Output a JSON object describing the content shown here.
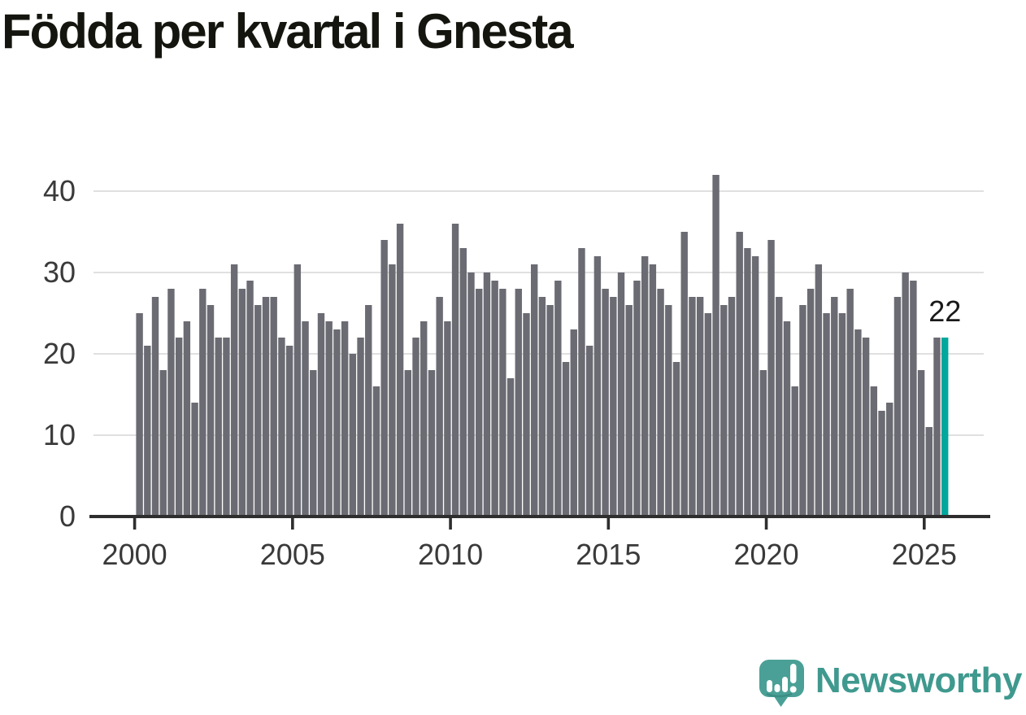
{
  "title": "Födda per kvartal i Gnesta",
  "chart_data": {
    "type": "bar",
    "title": "Födda per kvartal i Gnesta",
    "x_unit": "quarter",
    "start_year": 2000,
    "start_quarter": 1,
    "end_year": 2025,
    "end_quarter": 3,
    "values": [
      25,
      21,
      27,
      18,
      28,
      22,
      24,
      14,
      28,
      26,
      22,
      22,
      31,
      28,
      29,
      26,
      27,
      27,
      22,
      21,
      31,
      24,
      18,
      25,
      24,
      23,
      24,
      20,
      22,
      26,
      16,
      34,
      31,
      36,
      18,
      22,
      24,
      18,
      27,
      24,
      36,
      33,
      30,
      28,
      30,
      29,
      28,
      17,
      28,
      25,
      31,
      27,
      26,
      29,
      19,
      23,
      33,
      21,
      32,
      28,
      27,
      30,
      26,
      29,
      32,
      31,
      28,
      26,
      19,
      35,
      27,
      27,
      25,
      42,
      26,
      27,
      35,
      33,
      32,
      18,
      34,
      27,
      24,
      16,
      26,
      28,
      31,
      25,
      27,
      25,
      28,
      23,
      22,
      16,
      13,
      14,
      27,
      30,
      29,
      18,
      11,
      22,
      22
    ],
    "highlight_index": 102,
    "highlight_label": "22",
    "xticks": [
      {
        "label": "2000",
        "index": 0
      },
      {
        "label": "2005",
        "index": 20
      },
      {
        "label": "2010",
        "index": 40
      },
      {
        "label": "2015",
        "index": 60
      },
      {
        "label": "2020",
        "index": 80
      },
      {
        "label": "2025",
        "index": 100
      }
    ],
    "yticks": [
      {
        "label": "0",
        "value": 0
      },
      {
        "label": "10",
        "value": 10
      },
      {
        "label": "20",
        "value": 20
      },
      {
        "label": "30",
        "value": 30
      },
      {
        "label": "40",
        "value": 40
      }
    ],
    "ylim": [
      0,
      44
    ],
    "grid": "horizontal",
    "legend": null,
    "colors": {
      "bar": "#6b6b73",
      "highlight": "#00a79d",
      "grid": "#e0e0e0",
      "axis": "#2e2e2e",
      "tick_text": "#3a3a3a",
      "annotation": "#1a1a1a"
    }
  },
  "brand": {
    "name": "Newsworthy",
    "color": "#3f998e"
  }
}
